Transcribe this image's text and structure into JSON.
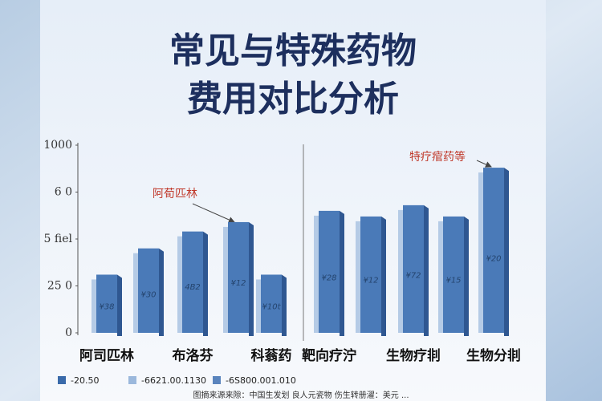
{
  "chart_data": {
    "type": "bar",
    "title_lines": [
      "常见与特殊药物",
      "费用对比分析"
    ],
    "categories": [
      "阿司匹林",
      null,
      "布洛芬",
      null,
      "科蓊药",
      "靶向疗泞",
      null,
      "生物疗剕",
      null,
      "生物分剕"
    ],
    "values": [
      31,
      45,
      54,
      59,
      31,
      65,
      62,
      68,
      62,
      88
    ],
    "bar_texts": [
      "¥38",
      "¥30",
      "4B2",
      "¥12",
      "¥10t",
      "¥28",
      "¥12",
      "¥72",
      "¥15",
      "¥20"
    ],
    "color": "#4a7ab8",
    "ylim": [
      0,
      100
    ],
    "yticks": [
      0,
      {
        "value": 25,
        "label": "25 0"
      },
      {
        "value": 50,
        "label": "5 fiel"
      },
      {
        "value": 75,
        "label": "6 0"
      },
      {
        "value": 100,
        "label": "1000"
      }
    ],
    "annotations": [
      "阿荀匹林",
      "特疗痯药等"
    ],
    "legend": [
      {
        "label": "-20.50",
        "color": "#3a6aaa"
      },
      {
        "label": "-6621.00.1130",
        "color": "#9bb8dc"
      },
      {
        "label": "-6S800.001.010",
        "color": "#5a84bd"
      }
    ],
    "footer": "图摘来源来隙：中国生发划 良人元瓷物  伤生转册濯：美元 ..."
  }
}
